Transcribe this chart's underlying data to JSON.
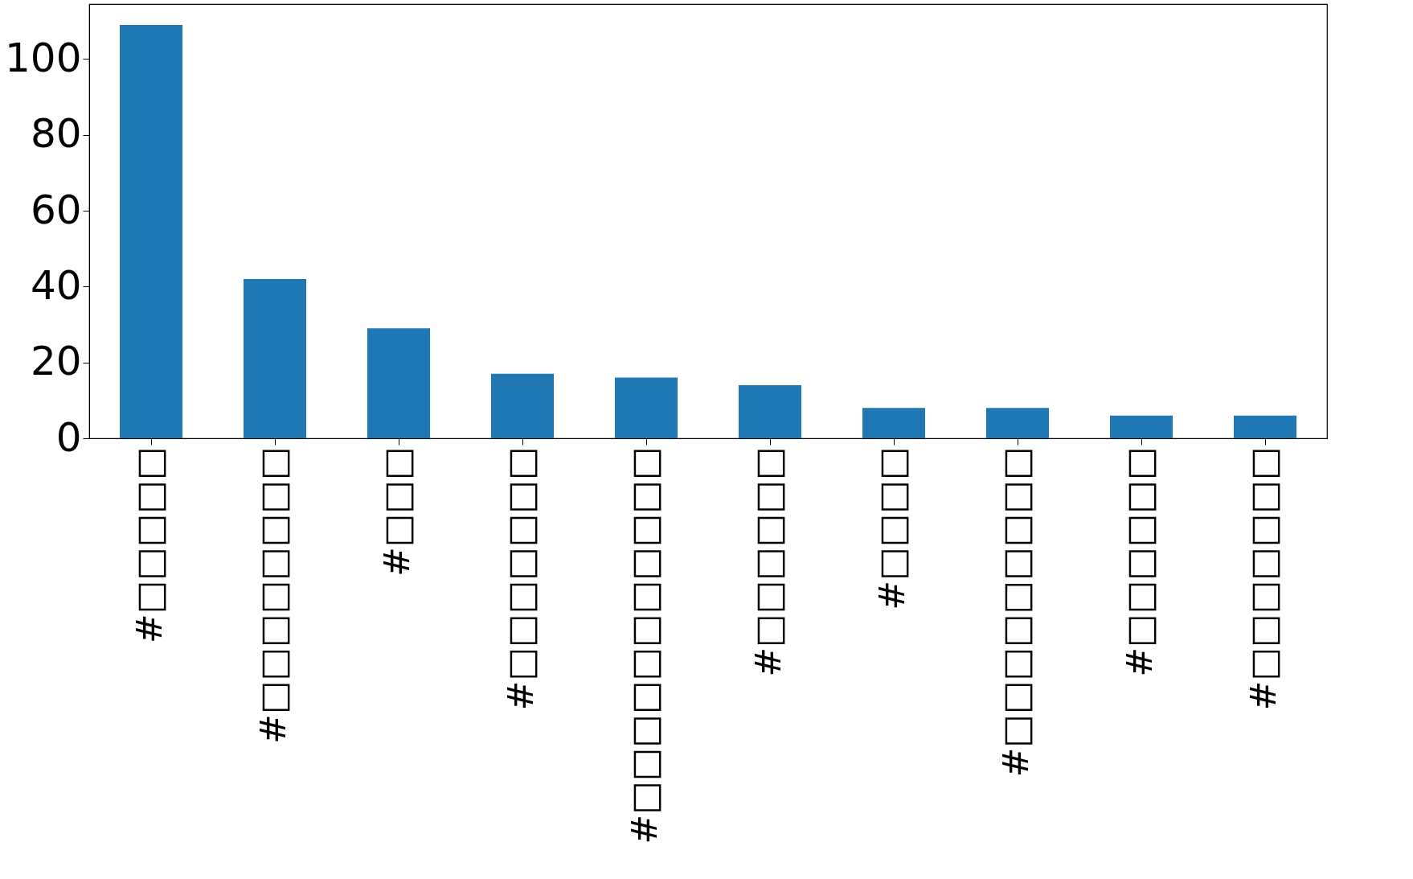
{
  "chart_data": {
    "type": "bar",
    "categories": [
      "#□□□□□",
      "#□□□□□□□□",
      "#□□□",
      "#□□□□□□□",
      "#□□□□□□□□□□□",
      "#□□□□□□",
      "#□□□□",
      "#□□□□□□□□□",
      "#□□□□□□",
      "#□□□□□□□"
    ],
    "values": [
      109,
      42,
      29,
      17,
      16,
      14,
      8,
      8,
      6,
      6
    ],
    "color": "#1f77b4",
    "ylim": [
      0,
      114.5
    ],
    "yticks": [
      0,
      20,
      40,
      60,
      80,
      100
    ],
    "grid": false
  }
}
